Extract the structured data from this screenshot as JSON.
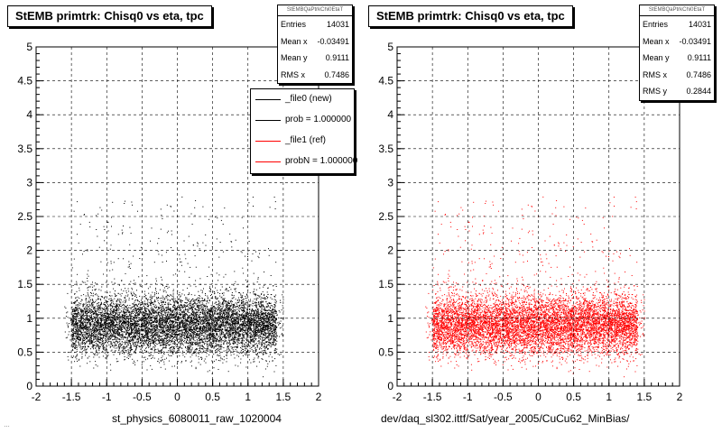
{
  "footer_text": "…",
  "chart_data": [
    {
      "type": "scatter",
      "title": "StEMB primtrk: Chisq0 vs eta, tpc",
      "xlabel": "st_physics_6080011_raw_1020004",
      "ylabel": "",
      "xlim": [
        -2,
        2
      ],
      "ylim": [
        0,
        5
      ],
      "xticks": [
        "-2",
        "-1.5",
        "-1",
        "-0.5",
        "0",
        "0.5",
        "1",
        "1.5",
        "2"
      ],
      "yticks": [
        "0",
        "0.5",
        "1",
        "1.5",
        "2",
        "2.5",
        "3",
        "3.5",
        "4",
        "4.5",
        "5"
      ],
      "grid": true,
      "color": "#000000",
      "stats": {
        "name": "StEMBQaPtrkChi0EtaT",
        "rows": [
          {
            "label": "Entries",
            "value": "14031"
          },
          {
            "label": "Mean x",
            "value": "-0.03491"
          },
          {
            "label": "Mean y",
            "value": "0.9111"
          },
          {
            "label": "RMS x",
            "value": "0.7486"
          }
        ]
      },
      "legend": {
        "position": "top-right",
        "entries": [
          {
            "label": "_file0 (new)",
            "color": "#000000"
          },
          {
            "label": "prob = 1.000000",
            "color": "#000000"
          },
          {
            "label": "_file1 (ref)",
            "color": "#ff0000"
          },
          {
            "label": "probN = 1.000000",
            "color": "#ff0000"
          }
        ]
      },
      "distribution": {
        "entries": 14031,
        "x_range": [
          -1.6,
          1.5
        ],
        "y_mean": 0.9111,
        "y_core": [
          0.5,
          1.4
        ],
        "y_tail_max": 2.8
      }
    },
    {
      "type": "scatter",
      "title": "StEMB primtrk: Chisq0 vs eta, tpc",
      "xlabel": "dev/daq_sl302.ittf/Sat/year_2005/CuCu62_MinBias/",
      "ylabel": "",
      "xlim": [
        -2,
        2
      ],
      "ylim": [
        0,
        5
      ],
      "xticks": [
        "-2",
        "-1.5",
        "-1",
        "-0.5",
        "0",
        "0.5",
        "1",
        "1.5",
        "2"
      ],
      "yticks": [
        "0",
        "0.5",
        "1",
        "1.5",
        "2",
        "2.5",
        "3",
        "3.5",
        "4",
        "4.5",
        "5"
      ],
      "grid": true,
      "color": "#ff0000",
      "stats": {
        "name": "StEMBQaPtrkChi0EtaT",
        "rows": [
          {
            "label": "Entries",
            "value": "14031"
          },
          {
            "label": "Mean x",
            "value": "-0.03491"
          },
          {
            "label": "Mean y",
            "value": "0.9111"
          },
          {
            "label": "RMS x",
            "value": "0.7486"
          },
          {
            "label": "RMS y",
            "value": "0.2844"
          }
        ]
      },
      "distribution": {
        "entries": 14031,
        "x_range": [
          -1.6,
          1.5
        ],
        "y_mean": 0.9111,
        "y_core": [
          0.5,
          1.4
        ],
        "y_tail_max": 2.8
      }
    }
  ]
}
